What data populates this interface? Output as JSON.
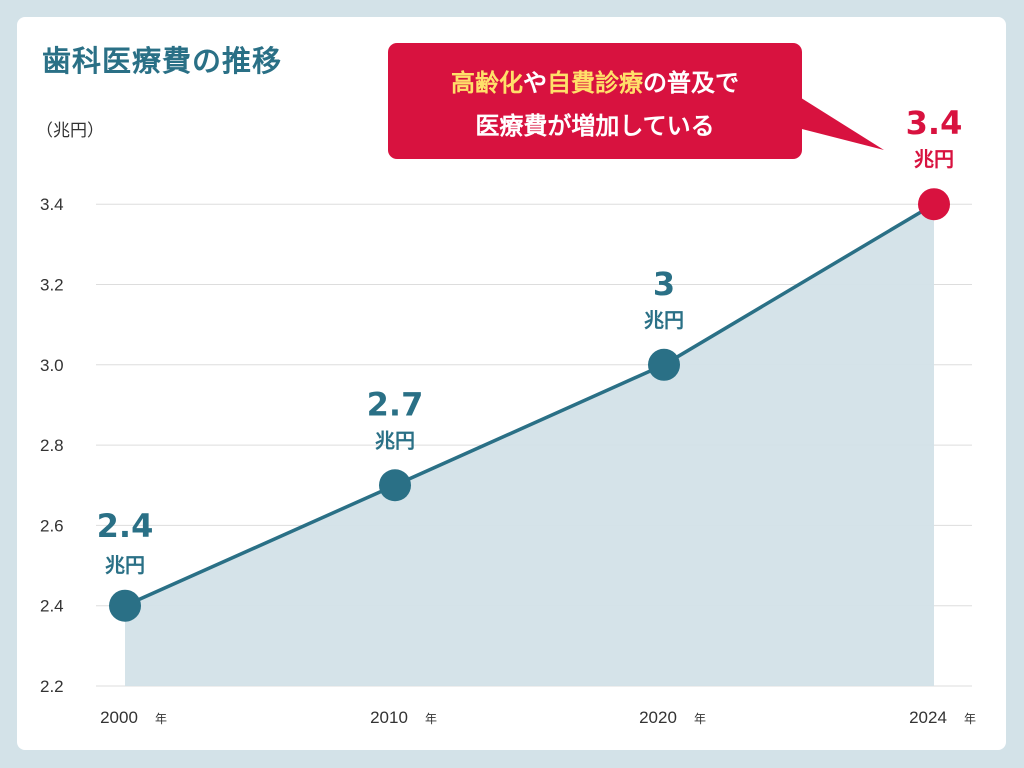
{
  "chart_data": {
    "type": "line",
    "title": "歯科医療費の推移",
    "ylabel": "（兆円）",
    "categories": [
      "2000",
      "2010",
      "2020",
      "2024"
    ],
    "x_suffix": "年",
    "values": [
      2.4,
      2.7,
      3.0,
      3.4
    ],
    "value_labels": [
      "2.4",
      "2.7",
      "3",
      "3.4"
    ],
    "value_unit": "兆円",
    "ylim": [
      2.2,
      3.5
    ],
    "yticks": [
      "2.2",
      "2.4",
      "2.6",
      "2.8",
      "3.0",
      "3.2",
      "3.4"
    ],
    "grid": true,
    "colors": {
      "line": "#2a7086",
      "area": "#d3e2e8",
      "highlight": "#d8123f",
      "grid": "#dddddd"
    },
    "annotation": {
      "line1_a": "高齢化",
      "line1_b": "や",
      "line1_c": "自費診療",
      "line1_d": "の普及で",
      "line2": "医療費が増加している",
      "highlight_color": "#ffe06a"
    }
  }
}
